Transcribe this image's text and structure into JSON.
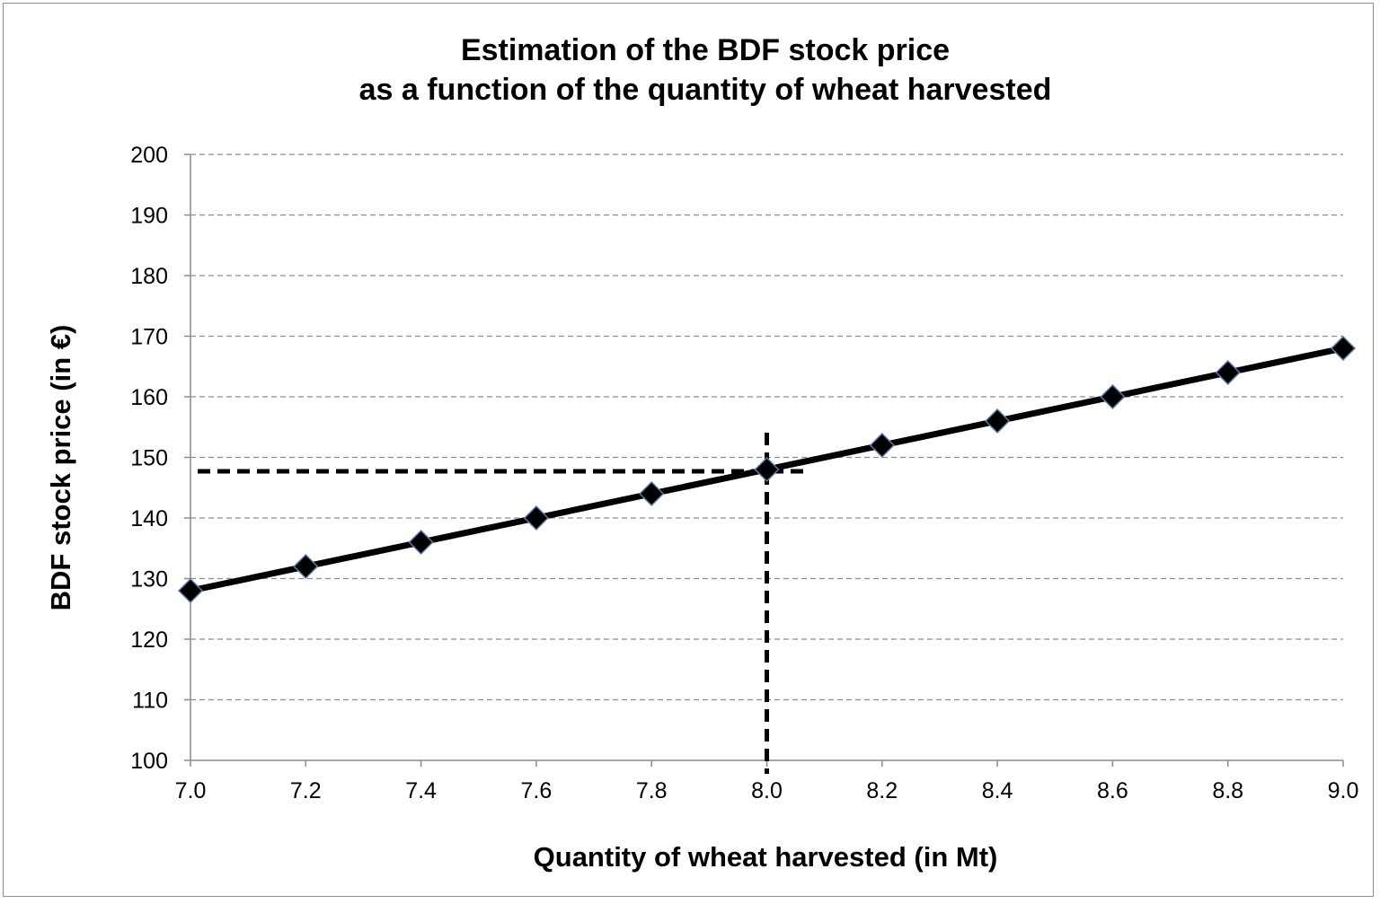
{
  "chart_data": {
    "type": "line",
    "title": [
      "Estimation of the BDF stock price",
      "as a function of the quantity of wheat harvested"
    ],
    "xlabel": "Quantity of wheat harvested (in Mt)",
    "ylabel": "BDF stock price (in €)",
    "xlim": [
      7.0,
      9.0
    ],
    "ylim": [
      100,
      200
    ],
    "x_ticks": [
      "7.0",
      "7.2",
      "7.4",
      "7.6",
      "7.8",
      "8.0",
      "8.2",
      "8.4",
      "8.6",
      "8.8",
      "9.0"
    ],
    "y_ticks": [
      "100",
      "110",
      "120",
      "130",
      "140",
      "150",
      "160",
      "170",
      "180",
      "190",
      "200"
    ],
    "grid": "horizontal dashed",
    "legend": "none",
    "series": [
      {
        "x": [
          7.0,
          7.2,
          7.4,
          7.6,
          7.8,
          8.0,
          8.2,
          8.4,
          8.6,
          8.8,
          9.0
        ],
        "values": [
          128,
          132,
          136,
          140,
          144,
          148,
          152,
          156,
          160,
          164,
          168
        ],
        "marker": "diamond",
        "color": "#000000"
      }
    ],
    "reference_lines": [
      {
        "axis": "x",
        "value": 8.0,
        "style": "dashed"
      },
      {
        "axis": "y",
        "value": 148,
        "style": "dashed"
      }
    ]
  }
}
